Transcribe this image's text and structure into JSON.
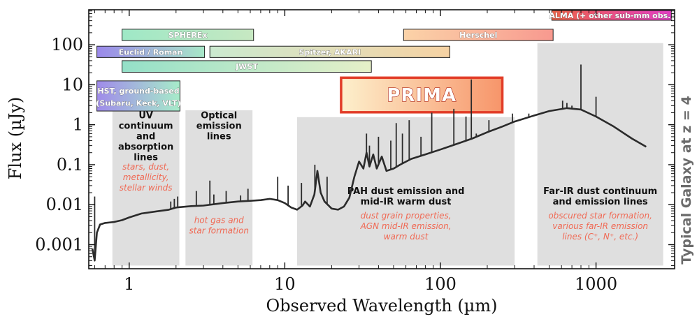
{
  "chart_data": {
    "type": "line",
    "xscale": "log",
    "yscale": "log",
    "xlim": [
      0.55,
      3200
    ],
    "ylim": [
      0.00025,
      750
    ],
    "xlabel": "Observed Wavelength (µm)",
    "ylabel": "Flux (µJy)",
    "right_label": "Typical Galaxy at z = 4",
    "x_ticks": [
      {
        "v": 1,
        "label": "1"
      },
      {
        "v": 10,
        "label": "10"
      },
      {
        "v": 100,
        "label": "100"
      },
      {
        "v": 1000,
        "label": "1000"
      }
    ],
    "y_ticks": [
      {
        "v": 0.001,
        "label": "0.001"
      },
      {
        "v": 0.01,
        "label": "0.01"
      },
      {
        "v": 0.1,
        "label": "0.1"
      },
      {
        "v": 1,
        "label": "1"
      },
      {
        "v": 10,
        "label": "10"
      },
      {
        "v": 100,
        "label": "100"
      }
    ],
    "sed_continuum": [
      [
        0.58,
        0.0008
      ],
      [
        0.6,
        0.0004
      ],
      [
        0.62,
        0.002
      ],
      [
        0.65,
        0.0032
      ],
      [
        0.7,
        0.0035
      ],
      [
        0.8,
        0.0037
      ],
      [
        0.9,
        0.0041
      ],
      [
        1.0,
        0.0048
      ],
      [
        1.2,
        0.006
      ],
      [
        1.5,
        0.0068
      ],
      [
        1.8,
        0.0075
      ],
      [
        2.0,
        0.0085
      ],
      [
        2.5,
        0.0092
      ],
      [
        3.0,
        0.0095
      ],
      [
        4.0,
        0.011
      ],
      [
        5.0,
        0.012
      ],
      [
        6.0,
        0.0125
      ],
      [
        7.0,
        0.013
      ],
      [
        8.0,
        0.014
      ],
      [
        9.0,
        0.013
      ],
      [
        10.0,
        0.011
      ],
      [
        11.0,
        0.0085
      ],
      [
        12.0,
        0.0075
      ],
      [
        13.0,
        0.0095
      ],
      [
        13.5,
        0.012
      ],
      [
        14.5,
        0.009
      ],
      [
        15.5,
        0.018
      ],
      [
        16.2,
        0.07
      ],
      [
        17.0,
        0.02
      ],
      [
        18.0,
        0.012
      ],
      [
        20.0,
        0.008
      ],
      [
        22.0,
        0.0075
      ],
      [
        24.0,
        0.009
      ],
      [
        26.0,
        0.015
      ],
      [
        28.0,
        0.05
      ],
      [
        30.0,
        0.12
      ],
      [
        32.0,
        0.08
      ],
      [
        33.5,
        0.2
      ],
      [
        35.0,
        0.09
      ],
      [
        37.0,
        0.18
      ],
      [
        39.0,
        0.08
      ],
      [
        42.0,
        0.16
      ],
      [
        45.0,
        0.07
      ],
      [
        50.0,
        0.08
      ],
      [
        55.0,
        0.1
      ],
      [
        65.0,
        0.14
      ],
      [
        80.0,
        0.18
      ],
      [
        100.0,
        0.24
      ],
      [
        130.0,
        0.34
      ],
      [
        160.0,
        0.45
      ],
      [
        200.0,
        0.65
      ],
      [
        250.0,
        0.9
      ],
      [
        300.0,
        1.2
      ],
      [
        400.0,
        1.7
      ],
      [
        500.0,
        2.2
      ],
      [
        650.0,
        2.6
      ],
      [
        800.0,
        2.4
      ],
      [
        1000.0,
        1.6
      ],
      [
        1300.0,
        0.9
      ],
      [
        1700.0,
        0.45
      ],
      [
        2100.0,
        0.28
      ]
    ],
    "sed_lines": [
      [
        0.6,
        0.016
      ],
      [
        1.85,
        0.012
      ],
      [
        1.95,
        0.014
      ],
      [
        2.05,
        0.016
      ],
      [
        2.7,
        0.022
      ],
      [
        3.3,
        0.04
      ],
      [
        3.5,
        0.018
      ],
      [
        4.2,
        0.022
      ],
      [
        5.2,
        0.017
      ],
      [
        5.8,
        0.025
      ],
      [
        9.0,
        0.05
      ],
      [
        10.5,
        0.03
      ],
      [
        12.8,
        0.035
      ],
      [
        15.6,
        0.1
      ],
      [
        18.7,
        0.05
      ],
      [
        33.5,
        0.6
      ],
      [
        35.0,
        0.3
      ],
      [
        40.0,
        0.5
      ],
      [
        48.0,
        0.4
      ],
      [
        52.0,
        1.1
      ],
      [
        57.0,
        0.6
      ],
      [
        63.0,
        1.3
      ],
      [
        75.0,
        0.5
      ],
      [
        88.0,
        2.0
      ],
      [
        122.0,
        2.5
      ],
      [
        146.0,
        1.6
      ],
      [
        158.0,
        13.5
      ],
      [
        170.0,
        0.6
      ],
      [
        205.0,
        1.3
      ],
      [
        290.0,
        1.9
      ],
      [
        370.0,
        1.9
      ],
      [
        610.0,
        4.0
      ],
      [
        650.0,
        3.5
      ],
      [
        700.0,
        3.0
      ],
      [
        800.0,
        32.0
      ],
      [
        1000.0,
        5.0
      ]
    ],
    "regions": [
      {
        "id": "uv",
        "x": [
          0.78,
          2.1
        ],
        "y": [
          0.0003,
          2.3
        ],
        "title": [
          "UV",
          "continuum",
          "and",
          "absorption",
          "lines"
        ],
        "desc": [
          "stars, dust,",
          "metallicity,",
          "stellar winds"
        ],
        "title_y": 1.45,
        "desc_y": 0.075
      },
      {
        "id": "optical",
        "x": [
          2.3,
          6.2
        ],
        "y": [
          0.0003,
          2.3
        ],
        "title": [
          "Optical",
          "emission",
          "lines"
        ],
        "desc": [
          "hot gas and",
          "star formation"
        ],
        "title_y": 1.45,
        "desc_y": 0.0035
      },
      {
        "id": "pah",
        "x": [
          12.0,
          300.0
        ],
        "y": [
          0.0003,
          1.55
        ],
        "title": [
          "PAH dust emission and",
          "mid-IR warm dust"
        ],
        "desc": [
          "dust grain properties,",
          "AGN mid-IR emission,",
          "warm dust"
        ],
        "title_y": 0.0185,
        "desc_y": 0.0045
      },
      {
        "id": "farir",
        "x": [
          420.0,
          2700.0
        ],
        "y": [
          0.0003,
          110.0
        ],
        "title": [
          "Far-IR dust continuum",
          "and emission lines"
        ],
        "desc": [
          "obscured star formation,",
          "various far-IR emission",
          "lines (C⁺, N⁺, etc.)"
        ],
        "title_y": 0.0185,
        "desc_y": 0.0045
      }
    ],
    "facilities": [
      {
        "id": "sphere",
        "label": "SPHEREx",
        "x": [
          0.9,
          6.3
        ],
        "y": [
          127,
          245
        ],
        "c1": "#9ee8c6",
        "c2": "#c7e8c2"
      },
      {
        "id": "euclid",
        "label": "Euclid / Roman",
        "x": [
          0.62,
          3.05
        ],
        "y": [
          48,
          92
        ],
        "c1": "#9a88ea",
        "c2": "#a7e7c7"
      },
      {
        "id": "spitzer",
        "label": "Spitzer, AKARI",
        "x": [
          3.3,
          115
        ],
        "y": [
          48,
          92
        ],
        "c1": "#cbead0",
        "c2": "#f6d2a3"
      },
      {
        "id": "jwst",
        "label": "JWST",
        "x": [
          0.9,
          36
        ],
        "y": [
          20.5,
          40
        ],
        "c1": "#94e0c8",
        "c2": "#e6f0c8"
      },
      {
        "id": "hst",
        "label": "HST, ground-based",
        "label2": "(Subaru, Keck, VLT)",
        "x": [
          0.62,
          2.12
        ],
        "y": [
          2.2,
          12.5
        ],
        "c1": "#a08bea",
        "c2": "#a6ecc9"
      },
      {
        "id": "herschel",
        "label": "Herschel",
        "x": [
          58,
          530
        ],
        "y": [
          127,
          245
        ],
        "c1": "#fbd3a8",
        "c2": "#f8998f"
      },
      {
        "id": "alma",
        "label": "ALMA (+ other sub-mm obs.)",
        "x": [
          520,
          3050
        ],
        "y": [
          410,
          720
        ],
        "c1": "#ef6346",
        "c2": "#e23ec4"
      }
    ],
    "prima": {
      "label": "PRIMA",
      "x": [
        23,
        250
      ],
      "y": [
        2.05,
        15
      ],
      "c1": "#fdf0cc",
      "c2": "#f7956a",
      "border": "#e23d28"
    }
  }
}
